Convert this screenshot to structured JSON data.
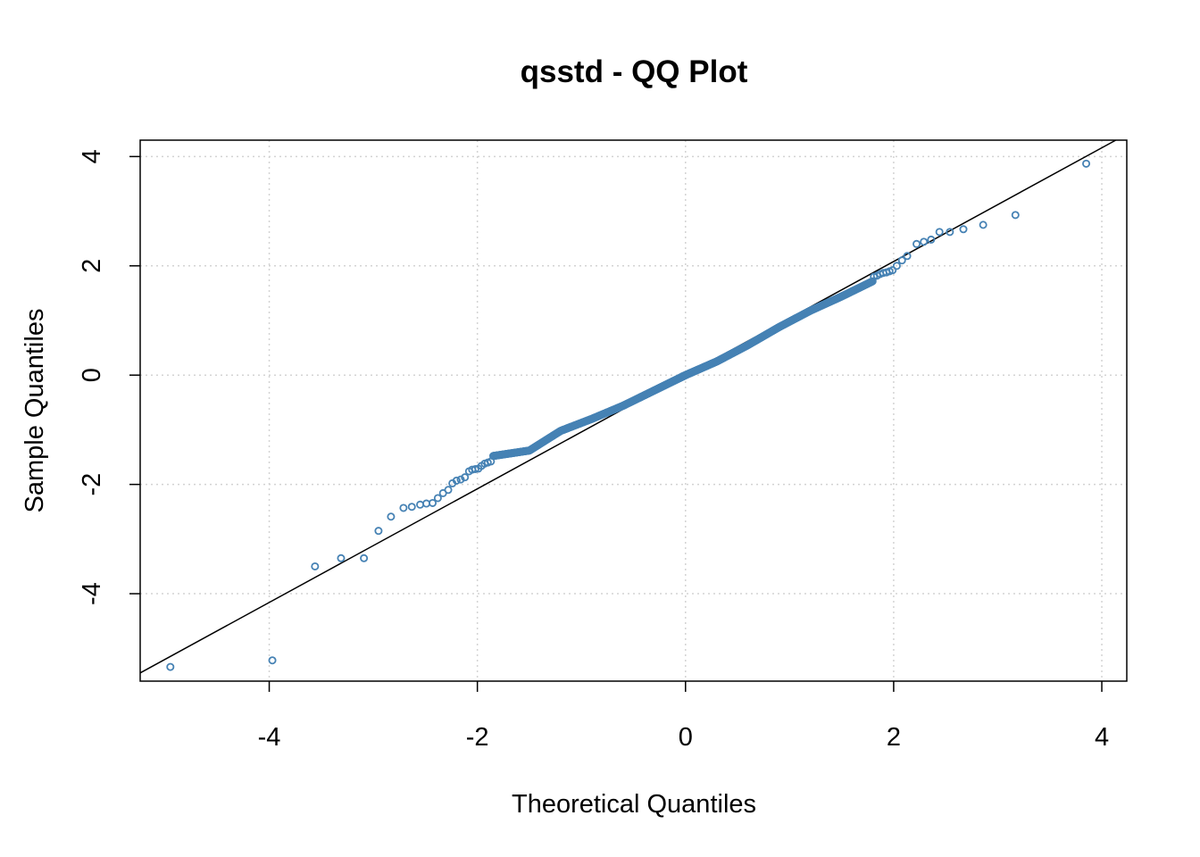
{
  "chart_data": {
    "type": "scatter",
    "title": "qsstd - QQ Plot",
    "xlabel": "Theoretical Quantiles",
    "ylabel": "Sample Quantiles",
    "xlim": [
      -5.24,
      4.24
    ],
    "ylim": [
      -5.6,
      4.3
    ],
    "xticks": [
      -4,
      -2,
      0,
      2,
      4
    ],
    "yticks": [
      -4,
      -2,
      0,
      2,
      4
    ],
    "grid": true,
    "point_color": "#4682b4",
    "line_color": "#000000",
    "reference_line": {
      "intercept": 0.0,
      "slope": 1.04
    },
    "highlighted_points": [
      [
        -4.95,
        -5.34
      ],
      [
        -3.97,
        -5.22
      ],
      [
        -3.56,
        -3.5
      ],
      [
        -3.31,
        -3.35
      ],
      [
        -3.09,
        -3.35
      ],
      [
        -2.95,
        -2.85
      ],
      [
        -2.83,
        -2.59
      ],
      [
        -2.71,
        -2.43
      ],
      [
        -2.63,
        -2.41
      ],
      [
        -2.55,
        -2.37
      ],
      [
        -2.49,
        -2.35
      ],
      [
        -2.43,
        -2.34
      ],
      [
        -2.38,
        -2.25
      ],
      [
        -2.33,
        -2.16
      ],
      [
        -2.28,
        -2.1
      ],
      [
        -2.24,
        -1.98
      ],
      [
        -2.2,
        -1.93
      ],
      [
        -2.16,
        -1.91
      ],
      [
        -2.12,
        -1.87
      ],
      [
        -2.08,
        -1.76
      ],
      [
        -2.05,
        -1.73
      ],
      [
        -2.02,
        -1.72
      ],
      [
        -1.99,
        -1.71
      ],
      [
        -1.96,
        -1.66
      ],
      [
        -1.93,
        -1.62
      ],
      [
        -1.9,
        -1.6
      ],
      [
        -1.87,
        -1.58
      ],
      [
        1.81,
        1.8
      ],
      [
        1.84,
        1.82
      ],
      [
        1.87,
        1.85
      ],
      [
        1.9,
        1.87
      ],
      [
        1.93,
        1.88
      ],
      [
        1.96,
        1.9
      ],
      [
        1.99,
        1.92
      ],
      [
        2.03,
        2.0
      ],
      [
        2.08,
        2.1
      ],
      [
        2.13,
        2.18
      ],
      [
        2.22,
        2.4
      ],
      [
        2.29,
        2.44
      ],
      [
        2.36,
        2.48
      ],
      [
        2.44,
        2.62
      ],
      [
        2.54,
        2.62
      ],
      [
        2.67,
        2.67
      ],
      [
        2.86,
        2.75
      ],
      [
        3.17,
        2.93
      ],
      [
        3.85,
        3.87
      ]
    ],
    "bulk": {
      "n": 800,
      "x_range": [
        -1.85,
        1.8
      ],
      "description_of_deviation": [
        [
          -1.85,
          -1.48
        ],
        [
          -1.5,
          -1.38
        ],
        [
          -1.2,
          -1.02
        ],
        [
          -0.9,
          -0.8
        ],
        [
          -0.6,
          -0.56
        ],
        [
          -0.3,
          -0.28
        ],
        [
          0,
          0
        ],
        [
          0.3,
          0.25
        ],
        [
          0.6,
          0.55
        ],
        [
          0.9,
          0.88
        ],
        [
          1.2,
          1.18
        ],
        [
          1.5,
          1.44
        ],
        [
          1.8,
          1.72
        ]
      ]
    }
  }
}
